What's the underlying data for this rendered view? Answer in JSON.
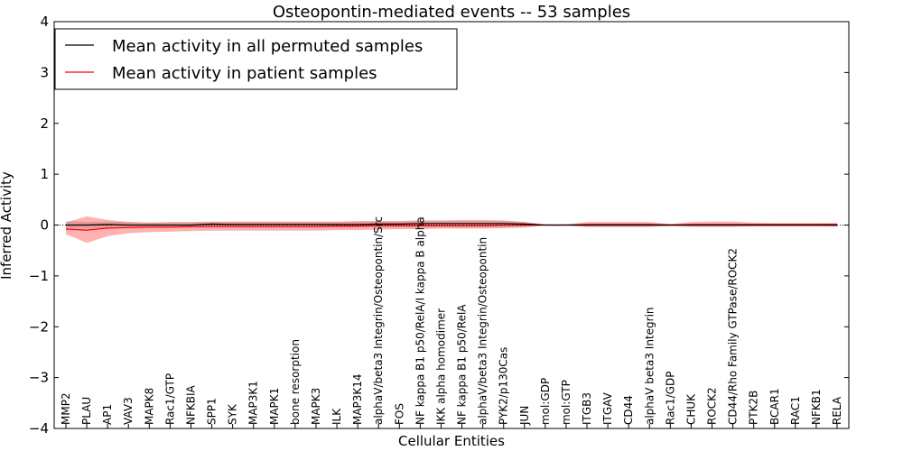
{
  "chart_data": {
    "type": "line",
    "title": "Osteopontin-mediated events -- 53 samples",
    "xlabel": "Cellular Entities",
    "ylabel": "Inferred Activity",
    "ylim": [
      -4,
      4
    ],
    "yticks": [
      -4,
      -3,
      -2,
      -1,
      0,
      1,
      2,
      3,
      4
    ],
    "ytick_labels": [
      "−4",
      "−3",
      "−2",
      "−1",
      "0",
      "1",
      "2",
      "3",
      "4"
    ],
    "legend_position": "top-left",
    "categories": [
      "MMP2",
      "PLAU",
      "AP1",
      "VAV3",
      "MAPK8",
      "Rac1/GTP",
      "NFKBIA",
      "SPP1",
      "SYK",
      "MAP3K1",
      "MAPK1",
      "bone resorption",
      "MAPK3",
      "ILK",
      "MAP3K14",
      "alphaV/beta3 Integrin/Osteopontin/Src",
      "FOS",
      "NF kappa B1 p50/RelA/I kappa B alpha",
      "IKK alpha homodimer",
      "NF kappa B1 p50/RelA",
      "alphaV/beta3 Integrin/Osteopontin",
      "PYK2/p130Cas",
      "JUN",
      "mol:GDP",
      "mol:GTP",
      "ITGB3",
      "ITGAV",
      "CD44",
      "alphaV beta3 Integrin",
      "Rac1/GDP",
      "CHUK",
      "ROCK2",
      "CD44/Rho Family GTPase/ROCK2",
      "PTK2B",
      "BCAR1",
      "RAC1",
      "NFKB1",
      "RELA"
    ],
    "series": [
      {
        "name": "Mean activity in all permuted samples",
        "color": "#000000",
        "values": [
          0.0,
          0.0,
          0.01,
          0.0,
          0.0,
          0.0,
          0.0,
          0.02,
          0.01,
          0.01,
          0.01,
          0.01,
          0.01,
          0.01,
          0.01,
          0.02,
          0.02,
          0.03,
          0.03,
          0.03,
          0.03,
          0.03,
          0.02,
          0.0,
          0.0,
          0.0,
          0.0,
          0.0,
          0.0,
          0.0,
          0.0,
          0.0,
          0.0,
          0.0,
          0.0,
          0.0,
          0.0,
          0.0
        ],
        "band_lower": [
          -0.06,
          -0.07,
          -0.06,
          -0.05,
          -0.05,
          -0.05,
          -0.05,
          -0.05,
          -0.05,
          -0.05,
          -0.05,
          -0.05,
          -0.05,
          -0.05,
          -0.05,
          -0.05,
          -0.05,
          -0.05,
          -0.05,
          -0.05,
          -0.05,
          -0.05,
          -0.04,
          -0.01,
          -0.01,
          -0.03,
          -0.03,
          -0.03,
          -0.03,
          -0.02,
          -0.02,
          -0.02,
          -0.02,
          -0.02,
          -0.02,
          -0.02,
          -0.02,
          -0.03
        ],
        "band_upper": [
          0.08,
          0.06,
          0.07,
          0.06,
          0.05,
          0.05,
          0.05,
          0.06,
          0.06,
          0.06,
          0.06,
          0.06,
          0.06,
          0.06,
          0.06,
          0.07,
          0.07,
          0.08,
          0.08,
          0.08,
          0.08,
          0.08,
          0.06,
          0.01,
          0.01,
          0.03,
          0.03,
          0.03,
          0.03,
          0.02,
          0.02,
          0.02,
          0.02,
          0.02,
          0.02,
          0.02,
          0.02,
          0.03
        ]
      },
      {
        "name": "Mean activity in patient samples",
        "color": "#ff0000",
        "values": [
          -0.08,
          -0.1,
          -0.06,
          -0.05,
          -0.04,
          -0.04,
          -0.03,
          -0.03,
          -0.03,
          -0.03,
          -0.03,
          -0.03,
          -0.03,
          -0.02,
          -0.02,
          -0.01,
          -0.01,
          -0.01,
          -0.01,
          -0.01,
          -0.01,
          0.0,
          0.0,
          0.0,
          0.0,
          0.01,
          0.01,
          0.01,
          0.01,
          0.0,
          0.01,
          0.01,
          0.01,
          0.01,
          0.01,
          0.01,
          0.01,
          0.01
        ],
        "band_lower": [
          -0.18,
          -0.35,
          -0.22,
          -0.16,
          -0.14,
          -0.13,
          -0.12,
          -0.11,
          -0.11,
          -0.11,
          -0.11,
          -0.11,
          -0.11,
          -0.1,
          -0.1,
          -0.09,
          -0.08,
          -0.08,
          -0.07,
          -0.07,
          -0.07,
          -0.06,
          -0.05,
          -0.01,
          -0.01,
          -0.04,
          -0.04,
          -0.04,
          -0.04,
          -0.02,
          -0.04,
          -0.04,
          -0.04,
          -0.03,
          -0.03,
          -0.03,
          -0.03,
          -0.03
        ],
        "band_upper": [
          0.05,
          0.17,
          0.1,
          0.06,
          0.05,
          0.06,
          0.06,
          0.07,
          0.07,
          0.07,
          0.07,
          0.07,
          0.07,
          0.07,
          0.08,
          0.08,
          0.08,
          0.09,
          0.09,
          0.1,
          0.1,
          0.09,
          0.06,
          0.01,
          0.01,
          0.06,
          0.06,
          0.06,
          0.06,
          0.02,
          0.06,
          0.07,
          0.07,
          0.05,
          0.04,
          0.04,
          0.04,
          0.04
        ]
      }
    ]
  }
}
